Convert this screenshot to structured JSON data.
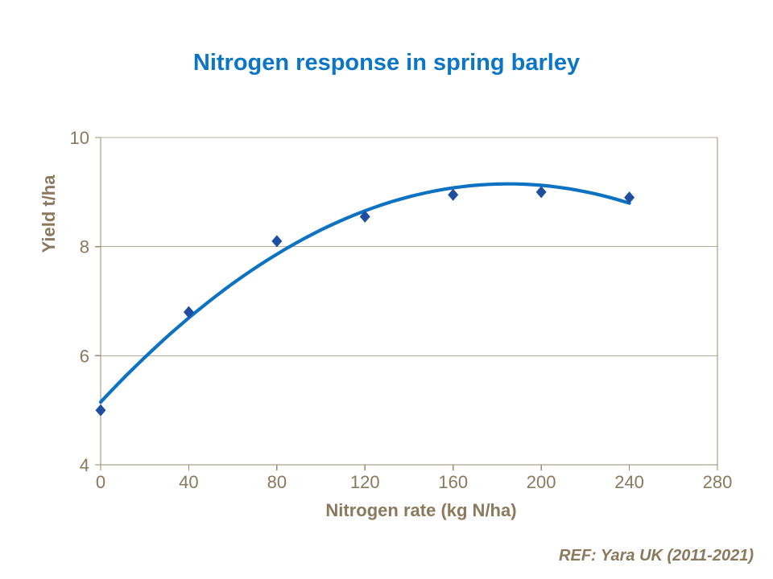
{
  "slide": {
    "ref_note": "REF: Yara UK (2011-2021)"
  },
  "chart_data": {
    "type": "scatter",
    "title": "Nitrogen response in spring barley",
    "xlabel": "Nitrogen rate (kg N/ha)",
    "ylabel": "Yield t/ha",
    "x": [
      0,
      40,
      80,
      120,
      160,
      200,
      240
    ],
    "y": [
      5.0,
      6.8,
      8.1,
      8.55,
      8.95,
      9.0,
      8.9
    ],
    "xlim": [
      0,
      280
    ],
    "ylim": [
      4,
      10
    ],
    "x_ticks": [
      0,
      40,
      80,
      120,
      160,
      200,
      240,
      280
    ],
    "y_ticks": [
      10,
      8,
      6,
      4
    ],
    "gridlines": "horizontal",
    "legend_position": "none",
    "marker": "diamond",
    "trendline": {
      "type": "polynomial",
      "order": 2,
      "vertex_x": 185,
      "vertex_y": 9.15,
      "y_at_x0": 5.15,
      "x_start": 0,
      "x_end": 240
    },
    "colors": {
      "title": "#0B76C6",
      "line": "#0D72C2",
      "marker": "#1F4E9F",
      "text": "#8A795D",
      "axis": "#99896F"
    }
  }
}
